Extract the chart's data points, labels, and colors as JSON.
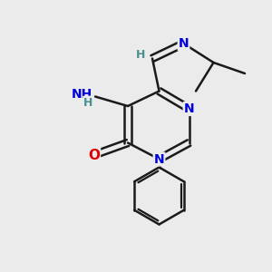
{
  "background_color": "#ebebeb",
  "bond_color": "#1a1a1a",
  "bond_width": 1.8,
  "atom_colors": {
    "N": "#0000dd",
    "O": "#dd0000",
    "C": "#1a1a1a",
    "H": "#4a9090"
  },
  "font_size_atom": 10,
  "font_size_H": 9
}
